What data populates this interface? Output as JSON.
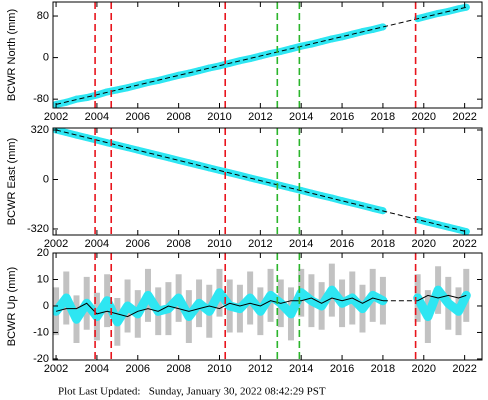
{
  "chart_data": [
    {
      "type": "line",
      "y_label": "BCWR North (mm)",
      "xlim": [
        2001.85,
        2022.85
      ],
      "xticks": [
        2002,
        2004,
        2006,
        2008,
        2010,
        2012,
        2014,
        2016,
        2018,
        2020,
        2022
      ],
      "ylim": [
        -97,
        107
      ],
      "yticks": [
        -80,
        0,
        80
      ],
      "x": [
        2002,
        2002.5,
        2003,
        2003.5,
        2004,
        2004.5,
        2005,
        2005.5,
        2006,
        2006.5,
        2007,
        2007.5,
        2008,
        2008.5,
        2009,
        2009.5,
        2010,
        2010.5,
        2011,
        2011.5,
        2012,
        2012.5,
        2013,
        2013.5,
        2014,
        2014.5,
        2015,
        2015.5,
        2016,
        2016.5,
        2017,
        2017.5,
        2018,
        2019,
        2019.7,
        2020.2,
        2020.7,
        2021.2,
        2021.7,
        2022.08
      ],
      "reference_lines": [
        {
          "x": 2003.91,
          "color": "#e8141c"
        },
        {
          "x": 2004.7,
          "color": "#e8141c"
        },
        {
          "x": 2010.28,
          "color": "#e8141c"
        },
        {
          "x": 2012.83,
          "color": "#2bb52b"
        },
        {
          "x": 2013.91,
          "color": "#2bb52b"
        },
        {
          "x": 2019.6,
          "color": "#e8141c"
        }
      ],
      "series": [
        {
          "style": "points",
          "color": "#2ee6f2",
          "values": [
            -90,
            -86,
            -80,
            -77,
            -72,
            -66,
            -62,
            -58,
            -53,
            -48,
            -44,
            -39,
            -34,
            -30,
            -25,
            -20,
            -16,
            -11,
            -6,
            -2,
            3,
            8,
            12,
            17,
            22,
            26,
            31,
            36,
            40,
            45,
            50,
            54,
            59,
            null,
            75,
            80,
            85,
            89,
            94,
            97
          ]
        },
        {
          "style": "dashed",
          "color": "#000000",
          "x": [
            2002,
            2022.08
          ],
          "values": [
            -90,
            97
          ]
        }
      ]
    },
    {
      "type": "line",
      "y_label": "BCWR East (mm)",
      "xlim": [
        2001.85,
        2022.85
      ],
      "xticks": [
        2002,
        2004,
        2006,
        2008,
        2010,
        2012,
        2014,
        2016,
        2018,
        2020,
        2022
      ],
      "ylim": [
        -359,
        333
      ],
      "yticks": [
        -320,
        0,
        320
      ],
      "x": [
        2002,
        2002.5,
        2003,
        2003.5,
        2004,
        2004.5,
        2005,
        2005.5,
        2006,
        2006.5,
        2007,
        2007.5,
        2008,
        2008.5,
        2009,
        2009.5,
        2010,
        2010.5,
        2011,
        2011.5,
        2012,
        2012.5,
        2013,
        2013.5,
        2014,
        2014.5,
        2015,
        2015.5,
        2016,
        2016.5,
        2017,
        2017.5,
        2018,
        2019,
        2019.7,
        2020.2,
        2020.7,
        2021.2,
        2021.7,
        2022.08
      ],
      "reference_lines": [
        {
          "x": 2003.91,
          "color": "#e8141c"
        },
        {
          "x": 2004.7,
          "color": "#e8141c"
        },
        {
          "x": 2010.28,
          "color": "#e8141c"
        },
        {
          "x": 2012.83,
          "color": "#2bb52b"
        },
        {
          "x": 2013.91,
          "color": "#2bb52b"
        },
        {
          "x": 2019.6,
          "color": "#e8141c"
        }
      ],
      "series": [
        {
          "style": "points",
          "color": "#2ee6f2",
          "values": [
            320,
            304,
            287,
            271,
            255,
            238,
            222,
            206,
            190,
            173,
            157,
            141,
            124,
            108,
            92,
            75,
            59,
            43,
            27,
            10,
            -6,
            -22,
            -39,
            -55,
            -71,
            -88,
            -104,
            -120,
            -137,
            -153,
            -169,
            -186,
            -202,
            null,
            -259,
            -276,
            -292,
            -308,
            -324,
            -337
          ]
        },
        {
          "style": "dashed",
          "color": "#000000",
          "x": [
            2002,
            2022.08
          ],
          "values": [
            320,
            -337
          ]
        }
      ]
    },
    {
      "type": "line",
      "y_label": "BCWR Up (mm)",
      "xlim": [
        2001.85,
        2022.85
      ],
      "xticks": [
        2002,
        2004,
        2006,
        2008,
        2010,
        2012,
        2014,
        2016,
        2018,
        2020,
        2022
      ],
      "ylim": [
        -20.4,
        20
      ],
      "yticks": [
        -20,
        -10,
        0,
        10,
        20
      ],
      "x": [
        2002,
        2002.5,
        2003,
        2003.5,
        2004,
        2004.5,
        2005,
        2005.5,
        2006,
        2006.5,
        2007,
        2007.5,
        2008,
        2008.5,
        2009,
        2009.5,
        2010,
        2010.5,
        2011,
        2011.5,
        2012,
        2012.5,
        2013,
        2013.5,
        2014,
        2014.5,
        2015,
        2015.5,
        2016,
        2016.5,
        2017,
        2017.5,
        2018,
        2019,
        2019.7,
        2020.2,
        2020.7,
        2021.2,
        2021.7,
        2022.08
      ],
      "reference_lines": [
        {
          "x": 2003.91,
          "color": "#e8141c"
        },
        {
          "x": 2004.7,
          "color": "#e8141c"
        },
        {
          "x": 2010.28,
          "color": "#e8141c"
        },
        {
          "x": 2012.83,
          "color": "#2bb52b"
        },
        {
          "x": 2013.91,
          "color": "#2bb52b"
        },
        {
          "x": 2019.6,
          "color": "#e8141c"
        }
      ],
      "series": [
        {
          "style": "points",
          "color": "#2ee6f2",
          "error_color": "#b4b4b4",
          "values": [
            -2,
            3,
            -5,
            1,
            -4,
            2,
            -6,
            0,
            -3,
            4,
            -2,
            -1,
            3,
            -4,
            1,
            -2,
            5,
            0,
            -1,
            3,
            -2,
            4,
            1,
            -3,
            5,
            2,
            0,
            6,
            1,
            3,
            -1,
            4,
            2,
            null,
            3,
            -4,
            6,
            1,
            -2,
            4
          ],
          "errors": [
            9,
            10,
            9,
            10,
            9,
            10,
            9,
            10,
            9,
            10,
            9,
            10,
            9,
            10,
            9,
            10,
            9,
            10,
            9,
            10,
            9,
            10,
            9,
            10,
            9,
            10,
            9,
            10,
            9,
            10,
            9,
            10,
            9,
            null,
            9,
            10,
            9,
            10,
            9,
            10
          ]
        },
        {
          "style": "line",
          "color": "#000000",
          "values": [
            -2,
            -1,
            -1,
            1,
            -3,
            -2,
            -3,
            -4,
            -2,
            -1,
            -2,
            0,
            -1,
            -2,
            -1,
            0,
            -1,
            1,
            0,
            1,
            0,
            2,
            1,
            2,
            2,
            3,
            1,
            3,
            2,
            3,
            1,
            3,
            2,
            null,
            2,
            4,
            3,
            4,
            3,
            4
          ]
        },
        {
          "style": "dashed",
          "color": "#000000",
          "x": [
            2018,
            2019.7
          ],
          "values": [
            2,
            2
          ]
        }
      ]
    }
  ],
  "footer": "Plot Last Updated:   Sunday, January 30, 2022 08:42:29 PST"
}
